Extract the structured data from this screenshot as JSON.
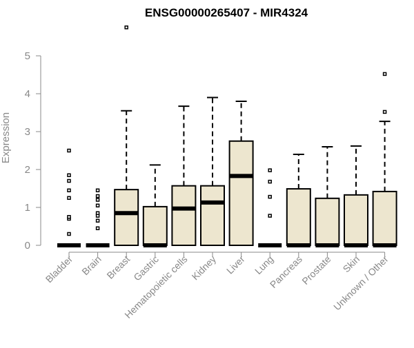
{
  "chart_data": {
    "type": "boxplot",
    "title": "ENSG00000265407 - MIR4324",
    "xlabel": "",
    "ylabel": "Expression",
    "ylim": [
      0,
      5.5
    ],
    "yticks": [
      "0",
      "1",
      "2",
      "3",
      "4",
      "5"
    ],
    "grid": false,
    "categories": [
      "Bladder",
      "Brain",
      "Breast",
      "Gastric",
      "Hematopoietic cells",
      "Kidney",
      "Liver",
      "Lung",
      "Pancreas",
      "Prostate",
      "Skin",
      "Unknown / Other"
    ],
    "boxes": [
      {
        "category": "Bladder",
        "q1": 0,
        "median": 0,
        "q3": 0,
        "whisker_low": 0,
        "whisker_high": 0,
        "outliers": [
          0.3,
          0.7,
          0.75,
          1.25,
          1.45,
          1.7,
          1.85,
          2.5
        ]
      },
      {
        "category": "Brain",
        "q1": 0,
        "median": 0,
        "q3": 0,
        "whisker_low": 0,
        "whisker_high": 0,
        "outliers": [
          0.45,
          0.65,
          0.78,
          0.85,
          1.05,
          1.2,
          1.3,
          1.45
        ]
      },
      {
        "category": "Breast",
        "q1": 0,
        "median": 0.85,
        "q3": 1.47,
        "whisker_low": 0,
        "whisker_high": 3.55,
        "outliers": [
          5.75
        ]
      },
      {
        "category": "Gastric",
        "q1": 0,
        "median": 0,
        "q3": 1.02,
        "whisker_low": 0,
        "whisker_high": 2.12,
        "outliers": []
      },
      {
        "category": "Hematopoietic cells",
        "q1": 0,
        "median": 0.97,
        "q3": 1.57,
        "whisker_low": 0,
        "whisker_high": 3.67,
        "outliers": []
      },
      {
        "category": "Kidney",
        "q1": 0,
        "median": 1.13,
        "q3": 1.57,
        "whisker_low": 0,
        "whisker_high": 3.9,
        "outliers": []
      },
      {
        "category": "Liver",
        "q1": 0,
        "median": 1.83,
        "q3": 2.75,
        "whisker_low": 0,
        "whisker_high": 3.8,
        "outliers": []
      },
      {
        "category": "Lung",
        "q1": 0,
        "median": 0,
        "q3": 0,
        "whisker_low": 0,
        "whisker_high": 0,
        "outliers": [
          0.78,
          1.28,
          1.68,
          1.98
        ]
      },
      {
        "category": "Pancreas",
        "q1": 0,
        "median": 0,
        "q3": 1.49,
        "whisker_low": 0,
        "whisker_high": 2.4,
        "outliers": []
      },
      {
        "category": "Prostate",
        "q1": 0,
        "median": 0,
        "q3": 1.24,
        "whisker_low": 0,
        "whisker_high": 2.6,
        "outliers": []
      },
      {
        "category": "Skin",
        "q1": 0,
        "median": 0,
        "q3": 1.33,
        "whisker_low": 0,
        "whisker_high": 2.62,
        "outliers": []
      },
      {
        "category": "Unknown / Other",
        "q1": 0,
        "median": 0,
        "q3": 1.42,
        "whisker_low": 0,
        "whisker_high": 3.27,
        "outliers": [
          3.52,
          4.52
        ]
      }
    ],
    "colors": {
      "box_fill": "#ede6cf",
      "box_stroke": "#000000",
      "axis": "#888888",
      "title": "#000000"
    }
  }
}
